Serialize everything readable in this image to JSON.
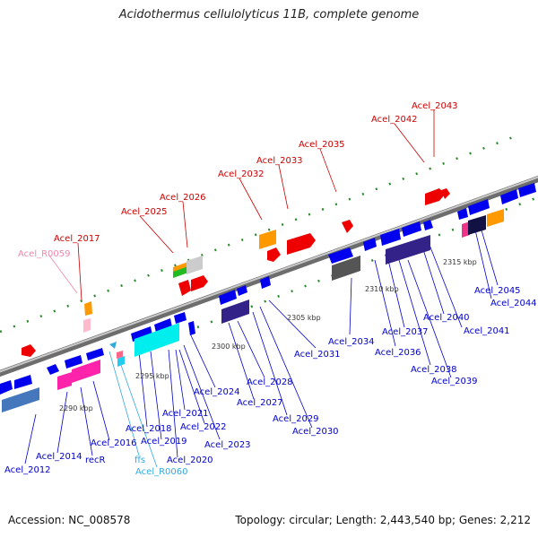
{
  "title": "Acidothermus cellulolyticus 11B, complete genome",
  "footer": {
    "accession": "Accession: NC_008578",
    "stats": "Topology: circular; Length: 2,443,540 bp; Genes: 2,212"
  },
  "colors": {
    "protein_coding_top": "#0000ee",
    "protein_coding_bottom": "#0000cc",
    "rna_label": "#33aadd",
    "pseudo_label": "#dd5577",
    "backbone": "#888888"
  },
  "scale_labels": [
    "2290 kbp",
    "2295 kbp",
    "2300 kbp",
    "2305 kbp",
    "2310 kbp",
    "2315 kbp"
  ],
  "genes_top": [
    "Acel_R0059",
    "Acel_2017",
    "Acel_2025",
    "Acel_2026",
    "Acel_2032",
    "Acel_2033",
    "Acel_2035",
    "Acel_2042",
    "Acel_2043"
  ],
  "genes_bottom": [
    "Acel_2012",
    "Acel_2014",
    "recR",
    "Acel_2016",
    "ffs",
    "Acel_R0060",
    "Acel_2018",
    "Acel_2019",
    "Acel_2020",
    "Acel_2021",
    "Acel_2022",
    "Acel_2023",
    "Acel_2024",
    "Acel_2027",
    "Acel_2028",
    "Acel_2029",
    "Acel_2030",
    "Acel_2031",
    "Acel_2034",
    "Acel_2036",
    "Acel_2037",
    "Acel_2038",
    "Acel_2039",
    "Acel_2040",
    "Acel_2041",
    "Acel_2044",
    "Acel_2045"
  ]
}
